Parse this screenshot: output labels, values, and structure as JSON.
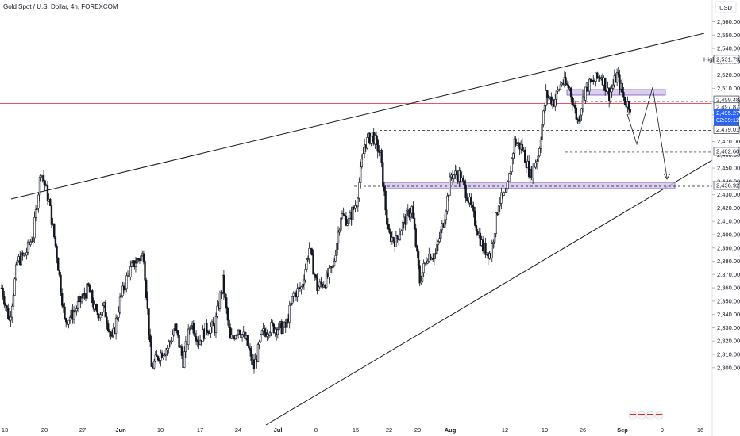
{
  "header": {
    "symbol_title": "Gold Spot / U.S. Dollar, 4h, FOREXCOM"
  },
  "price_axis": {
    "currency": "USD",
    "ticks": [
      "2,560.00",
      "2,550.00",
      "2,540.00",
      "2,530.00",
      "2,520.00",
      "2,510.00",
      "2,500.00",
      "2,490.00",
      "2,480.00",
      "2,470.00",
      "2,460.00",
      "2,450.00",
      "2,440.00",
      "2,430.00",
      "2,420.00",
      "2,410.00",
      "2,400.00",
      "2,390.00",
      "2,380.00",
      "2,370.00",
      "2,360.00",
      "2,350.00",
      "2,340.00",
      "2,330.00",
      "2,320.00",
      "2,310.00",
      "2,300.00"
    ]
  },
  "time_axis": {
    "ticks": [
      "13",
      "20",
      "27",
      "Jun",
      "10",
      "17",
      "24",
      "Jul",
      "8",
      "15",
      "22",
      "29",
      "Aug",
      "12",
      "19",
      "26",
      "Sep",
      "9",
      "16"
    ]
  },
  "price_tags": [
    {
      "id": "high",
      "label": "High",
      "value": "2,531.79",
      "style": "high"
    },
    {
      "id": "l1",
      "label": "",
      "value": "2,499.48",
      "style": "outline"
    },
    {
      "id": "l2",
      "label": "",
      "value": "2,497.87",
      "style": "outline"
    },
    {
      "id": "current",
      "label": "",
      "value": "2,495.27",
      "sub": "02:39:12",
      "style": "current"
    },
    {
      "id": "l4",
      "label": "",
      "value": "2,479.01",
      "style": "outline"
    },
    {
      "id": "l5",
      "label": "",
      "value": "2,462.60",
      "style": "outline"
    },
    {
      "id": "l6",
      "label": "",
      "value": "2,436.92",
      "style": "outline"
    }
  ],
  "colors": {
    "up": "#131722",
    "down": "#131722",
    "zone_fill": "#d1c4e9",
    "zone_stroke": "#7e57c2",
    "current_tag": "#2962ff",
    "price_line": "#f23645"
  },
  "chart_data": {
    "type": "candlestick",
    "symbol": "Gold Spot / U.S. Dollar",
    "interval": "4h",
    "ylim": [
      2296,
      2568
    ],
    "price_path": [
      {
        "date": "May 13",
        "price": 2360
      },
      {
        "date": "May 14",
        "price": 2335
      },
      {
        "date": "May 15",
        "price": 2380
      },
      {
        "date": "May 16",
        "price": 2385
      },
      {
        "date": "May 17",
        "price": 2400
      },
      {
        "date": "May 20",
        "price": 2449
      },
      {
        "date": "May 21",
        "price": 2425
      },
      {
        "date": "May 22",
        "price": 2385
      },
      {
        "date": "May 23",
        "price": 2335
      },
      {
        "date": "May 24",
        "price": 2340
      },
      {
        "date": "May 27",
        "price": 2350
      },
      {
        "date": "May 28",
        "price": 2360
      },
      {
        "date": "May 29",
        "price": 2340
      },
      {
        "date": "May 30",
        "price": 2345
      },
      {
        "date": "May 31",
        "price": 2320
      },
      {
        "date": "Jun 3",
        "price": 2350
      },
      {
        "date": "Jun 4",
        "price": 2370
      },
      {
        "date": "Jun 5",
        "price": 2380
      },
      {
        "date": "Jun 6",
        "price": 2385
      },
      {
        "date": "Jun 7",
        "price": 2300
      },
      {
        "date": "Jun 10",
        "price": 2310
      },
      {
        "date": "Jun 11",
        "price": 2315
      },
      {
        "date": "Jun 12",
        "price": 2330
      },
      {
        "date": "Jun 13",
        "price": 2305
      },
      {
        "date": "Jun 14",
        "price": 2335
      },
      {
        "date": "Jun 17",
        "price": 2320
      },
      {
        "date": "Jun 18",
        "price": 2330
      },
      {
        "date": "Jun 19",
        "price": 2330
      },
      {
        "date": "Jun 20",
        "price": 2365
      },
      {
        "date": "Jun 21",
        "price": 2320
      },
      {
        "date": "Jun 24",
        "price": 2330
      },
      {
        "date": "Jun 25",
        "price": 2320
      },
      {
        "date": "Jun 26",
        "price": 2300
      },
      {
        "date": "Jun 27",
        "price": 2325
      },
      {
        "date": "Jun 28",
        "price": 2330
      },
      {
        "date": "Jul 1",
        "price": 2330
      },
      {
        "date": "Jul 2",
        "price": 2330
      },
      {
        "date": "Jul 3",
        "price": 2355
      },
      {
        "date": "Jul 4",
        "price": 2360
      },
      {
        "date": "Jul 5",
        "price": 2390
      },
      {
        "date": "Jul 8",
        "price": 2360
      },
      {
        "date": "Jul 9",
        "price": 2365
      },
      {
        "date": "Jul 10",
        "price": 2375
      },
      {
        "date": "Jul 11",
        "price": 2415
      },
      {
        "date": "Jul 12",
        "price": 2410
      },
      {
        "date": "Jul 15",
        "price": 2425
      },
      {
        "date": "Jul 16",
        "price": 2468
      },
      {
        "date": "Jul 17",
        "price": 2475
      },
      {
        "date": "Jul 18",
        "price": 2460
      },
      {
        "date": "Jul 19",
        "price": 2400
      },
      {
        "date": "Jul 22",
        "price": 2395
      },
      {
        "date": "Jul 23",
        "price": 2410
      },
      {
        "date": "Jul 24",
        "price": 2420
      },
      {
        "date": "Jul 25",
        "price": 2365
      },
      {
        "date": "Jul 26",
        "price": 2385
      },
      {
        "date": "Jul 29",
        "price": 2385
      },
      {
        "date": "Jul 30",
        "price": 2410
      },
      {
        "date": "Jul 31",
        "price": 2445
      },
      {
        "date": "Aug 1",
        "price": 2445
      },
      {
        "date": "Aug 2",
        "price": 2430
      },
      {
        "date": "Aug 5",
        "price": 2410
      },
      {
        "date": "Aug 6",
        "price": 2390
      },
      {
        "date": "Aug 7",
        "price": 2385
      },
      {
        "date": "Aug 8",
        "price": 2425
      },
      {
        "date": "Aug 9",
        "price": 2430
      },
      {
        "date": "Aug 12",
        "price": 2470
      },
      {
        "date": "Aug 13",
        "price": 2465
      },
      {
        "date": "Aug 14",
        "price": 2445
      },
      {
        "date": "Aug 15",
        "price": 2460
      },
      {
        "date": "Aug 16",
        "price": 2505
      },
      {
        "date": "Aug 19",
        "price": 2500
      },
      {
        "date": "Aug 20",
        "price": 2515
      },
      {
        "date": "Aug 21",
        "price": 2510
      },
      {
        "date": "Aug 22",
        "price": 2485
      },
      {
        "date": "Aug 23",
        "price": 2510
      },
      {
        "date": "Aug 26",
        "price": 2515
      },
      {
        "date": "Aug 27",
        "price": 2520
      },
      {
        "date": "Aug 28",
        "price": 2505
      },
      {
        "date": "Aug 29",
        "price": 2520
      },
      {
        "date": "Aug 30",
        "price": 2500
      },
      {
        "date": "Sep 2",
        "price": 2495
      }
    ]
  }
}
